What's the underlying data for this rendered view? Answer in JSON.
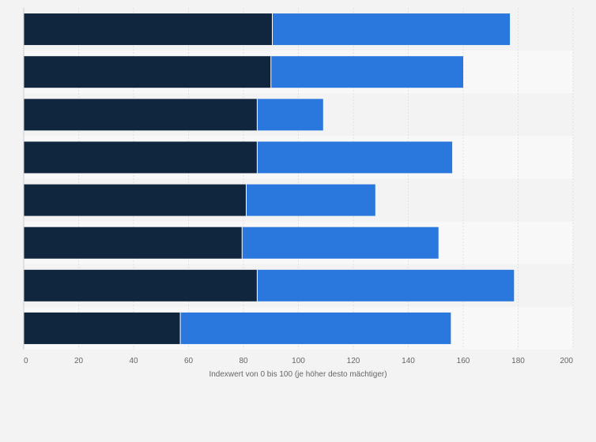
{
  "chart_data": {
    "type": "bar",
    "orientation": "horizontal",
    "stacked": true,
    "title": "",
    "xlabel": "Indexwert von 0 bis 100 (je höher desto mächtiger)",
    "ylabel": "",
    "xlim": [
      0,
      200
    ],
    "x_ticks": [
      "0",
      "20",
      "40",
      "60",
      "80",
      "100",
      "120",
      "140",
      "160",
      "180",
      "200"
    ],
    "grid": true,
    "legend": "none",
    "categories": [
      "",
      "",
      "",
      "",
      "",
      "",
      "",
      ""
    ],
    "series": [
      {
        "color": "#10263f",
        "values": [
          90.5,
          90,
          85,
          85,
          81,
          79.5,
          85,
          57
        ]
      },
      {
        "color": "#2a78dd",
        "values": [
          86.5,
          70,
          24,
          71,
          47,
          71.5,
          93.5,
          98.5
        ]
      }
    ]
  }
}
